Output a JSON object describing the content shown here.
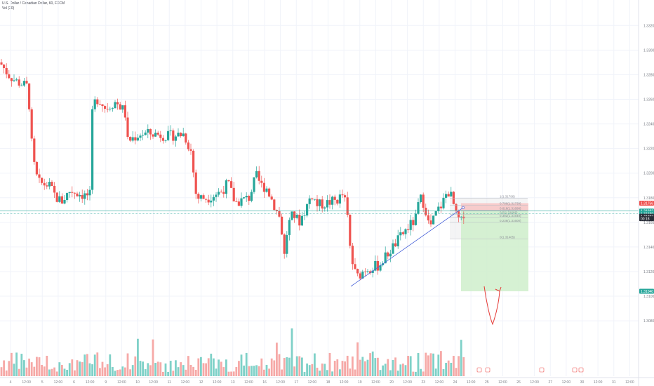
{
  "legend": {
    "symbol": "U.S. Dollar / Canadian Dollar, 60, FXCM",
    "volume": "Vol (20)"
  },
  "colors": {
    "up": "#26a69a",
    "down": "#ef5350",
    "up_vol": "#7fd1c8",
    "down_vol": "#f6a9a7",
    "grid": "#f0f3fa",
    "trendline": "#4a63d9",
    "stop_zone": "#f7c4c4",
    "target_zone": "#cfeecb",
    "fib_box": "#e9e9ec",
    "annotation": "#e53935",
    "price_tag_red": "#ef5350",
    "price_tag_green": "#26a69a",
    "price_tag_dark": "#2a2e39"
  },
  "chart_data": {
    "type": "candlestick",
    "ylim": [
      1.3035,
      1.3335
    ],
    "price_ticks": [
      "1.33200",
      "1.33000",
      "1.32800",
      "1.32600",
      "1.32400",
      "1.32200",
      "1.32000",
      "1.31800",
      "1.31600",
      "1.31400",
      "1.31200",
      "1.31000",
      "1.30800"
    ],
    "price_tick_values": [
      1.332,
      1.33,
      1.328,
      1.326,
      1.324,
      1.322,
      1.32,
      1.318,
      1.316,
      1.314,
      1.312,
      1.31,
      1.308
    ],
    "time_labels": [
      "4",
      "12:00",
      "5",
      "12:00",
      "6",
      "12:00",
      "9",
      "12:00",
      "10",
      "12:00",
      "11",
      "12:00",
      "12",
      "12:00",
      "13",
      "12:00",
      "16",
      "12:00",
      "17",
      "12:00",
      "18",
      "12:00",
      "19",
      "12:00",
      "20",
      "12:00",
      "23",
      "12:00",
      "24",
      "12:00",
      "25",
      "12:00",
      "26",
      "12:00",
      "27",
      "12:00",
      "30",
      "12:00",
      "31",
      "12:00"
    ],
    "price_path": [
      [
        0,
        1.329
      ],
      [
        12,
        1.328
      ],
      [
        22,
        1.3275
      ],
      [
        40,
        1.327
      ],
      [
        45,
        1.3225
      ],
      [
        50,
        1.32
      ],
      [
        56,
        1.3192
      ],
      [
        70,
        1.319
      ],
      [
        80,
        1.318
      ],
      [
        88,
        1.3177
      ],
      [
        100,
        1.3186
      ],
      [
        120,
        1.3182
      ],
      [
        128,
        1.3182
      ],
      [
        132,
        1.3255
      ],
      [
        140,
        1.3261
      ],
      [
        150,
        1.3253
      ],
      [
        165,
        1.3258
      ],
      [
        178,
        1.325
      ],
      [
        182,
        1.3226
      ],
      [
        200,
        1.3232
      ],
      [
        220,
        1.3232
      ],
      [
        240,
        1.323
      ],
      [
        262,
        1.3232
      ],
      [
        272,
        1.3218
      ],
      [
        280,
        1.318
      ],
      [
        295,
        1.318
      ],
      [
        315,
        1.3185
      ],
      [
        325,
        1.3192
      ],
      [
        335,
        1.3176
      ],
      [
        355,
        1.318
      ],
      [
        365,
        1.3198
      ],
      [
        372,
        1.319
      ],
      [
        380,
        1.3188
      ],
      [
        390,
        1.3175
      ],
      [
        400,
        1.3162
      ],
      [
        405,
        1.3132
      ],
      [
        410,
        1.3157
      ],
      [
        418,
        1.3167
      ],
      [
        426,
        1.316
      ],
      [
        435,
        1.317
      ],
      [
        444,
        1.3183
      ],
      [
        452,
        1.3174
      ],
      [
        462,
        1.3175
      ],
      [
        480,
        1.3178
      ],
      [
        490,
        1.3183
      ],
      [
        495,
        1.3165
      ],
      [
        500,
        1.3132
      ],
      [
        508,
        1.3115
      ],
      [
        520,
        1.3122
      ],
      [
        540,
        1.3125
      ],
      [
        560,
        1.314
      ],
      [
        580,
        1.3155
      ],
      [
        592,
        1.3162
      ],
      [
        598,
        1.318
      ],
      [
        605,
        1.3175
      ],
      [
        612,
        1.3155
      ],
      [
        622,
        1.3168
      ],
      [
        630,
        1.3175
      ],
      [
        638,
        1.3186
      ],
      [
        644,
        1.318
      ],
      [
        650,
        1.3165
      ],
      [
        657,
        1.316
      ],
      [
        662,
        1.317
      ]
    ],
    "last_candle_index": 662,
    "trendline": {
      "from": [
        500,
        1.3108
      ],
      "to": [
        660,
        1.3172
      ]
    },
    "fib_levels": [
      {
        "label": "1(1.31796)",
        "value": 1.31796
      },
      {
        "label": "0.786(1.31739)",
        "value": 1.31739
      },
      {
        "label": "0.618(1.31698)",
        "value": 1.31698
      },
      {
        "label": "0.5(1.31666)",
        "value": 1.31666
      },
      {
        "label": "0.382(1.31640)",
        "value": 1.3164
      },
      {
        "label": "0.236(1.31600)",
        "value": 1.316
      },
      {
        "label": "0(1.31465)",
        "value": 1.31465
      }
    ],
    "position": {
      "entry": 1.31692,
      "stop": 1.31756,
      "target": 1.3104
    },
    "price_tags": [
      {
        "label": "1.31756",
        "value": 1.31756,
        "kind": "red"
      },
      {
        "label": "1.31692",
        "value": 1.31692,
        "kind": "green"
      },
      {
        "label": "1.31689",
        "value": 1.3167,
        "kind": "green"
      },
      {
        "label": "1.31652",
        "value": 1.3165,
        "kind": "dark"
      },
      {
        "label": "00:18",
        "value": 1.3163,
        "kind": "dark"
      },
      {
        "label": "1.31040",
        "value": 1.3104,
        "kind": "green"
      }
    ]
  }
}
